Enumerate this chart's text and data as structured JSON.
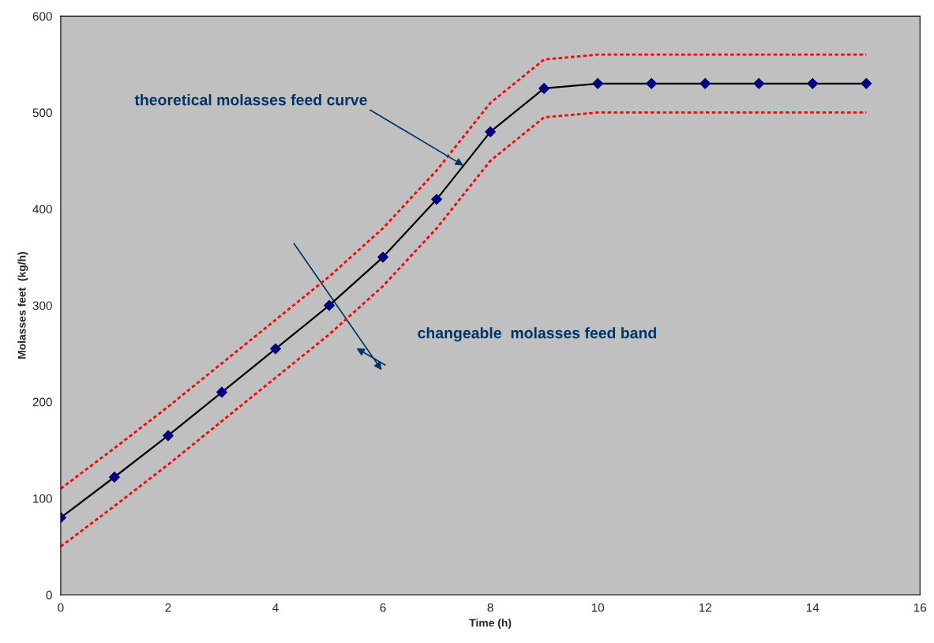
{
  "chart_data": {
    "type": "line",
    "xlabel": "Time (h)",
    "ylabel": "Molasses feet  (kg/h)",
    "x": [
      0,
      1,
      2,
      3,
      4,
      5,
      6,
      7,
      8,
      9,
      10,
      11,
      12,
      13,
      14,
      15
    ],
    "series": [
      {
        "color": "#ff0000",
        "line_style": "dotted",
        "marker": "none",
        "values": [
          110,
          152,
          195,
          240,
          285,
          330,
          380,
          440,
          510,
          555,
          560,
          560,
          560,
          560,
          560,
          560
        ]
      },
      {
        "color": "#ff0000",
        "line_style": "dotted",
        "marker": "none",
        "values": [
          50,
          92,
          135,
          180,
          225,
          270,
          320,
          380,
          450,
          495,
          500,
          500,
          500,
          500,
          500,
          500
        ]
      },
      {
        "color": "#000000",
        "line_style": "solid",
        "marker": "diamond",
        "values": [
          80,
          122,
          165,
          210,
          255,
          300,
          350,
          410,
          480,
          525,
          530,
          530,
          530,
          530,
          530,
          530
        ]
      }
    ],
    "xlim": [
      0,
      16
    ],
    "xticks": [
      0,
      2,
      4,
      6,
      8,
      10,
      12,
      14,
      16
    ],
    "ylim": [
      0,
      600
    ],
    "yticks": [
      0,
      100,
      200,
      300,
      400,
      500,
      600
    ],
    "grid": false,
    "legend": false,
    "annotations": [
      {
        "text": "theoretical molasses feed curve",
        "x": 7.5,
        "y": 445
      },
      "changeable  molasses feed band"
    ]
  }
}
